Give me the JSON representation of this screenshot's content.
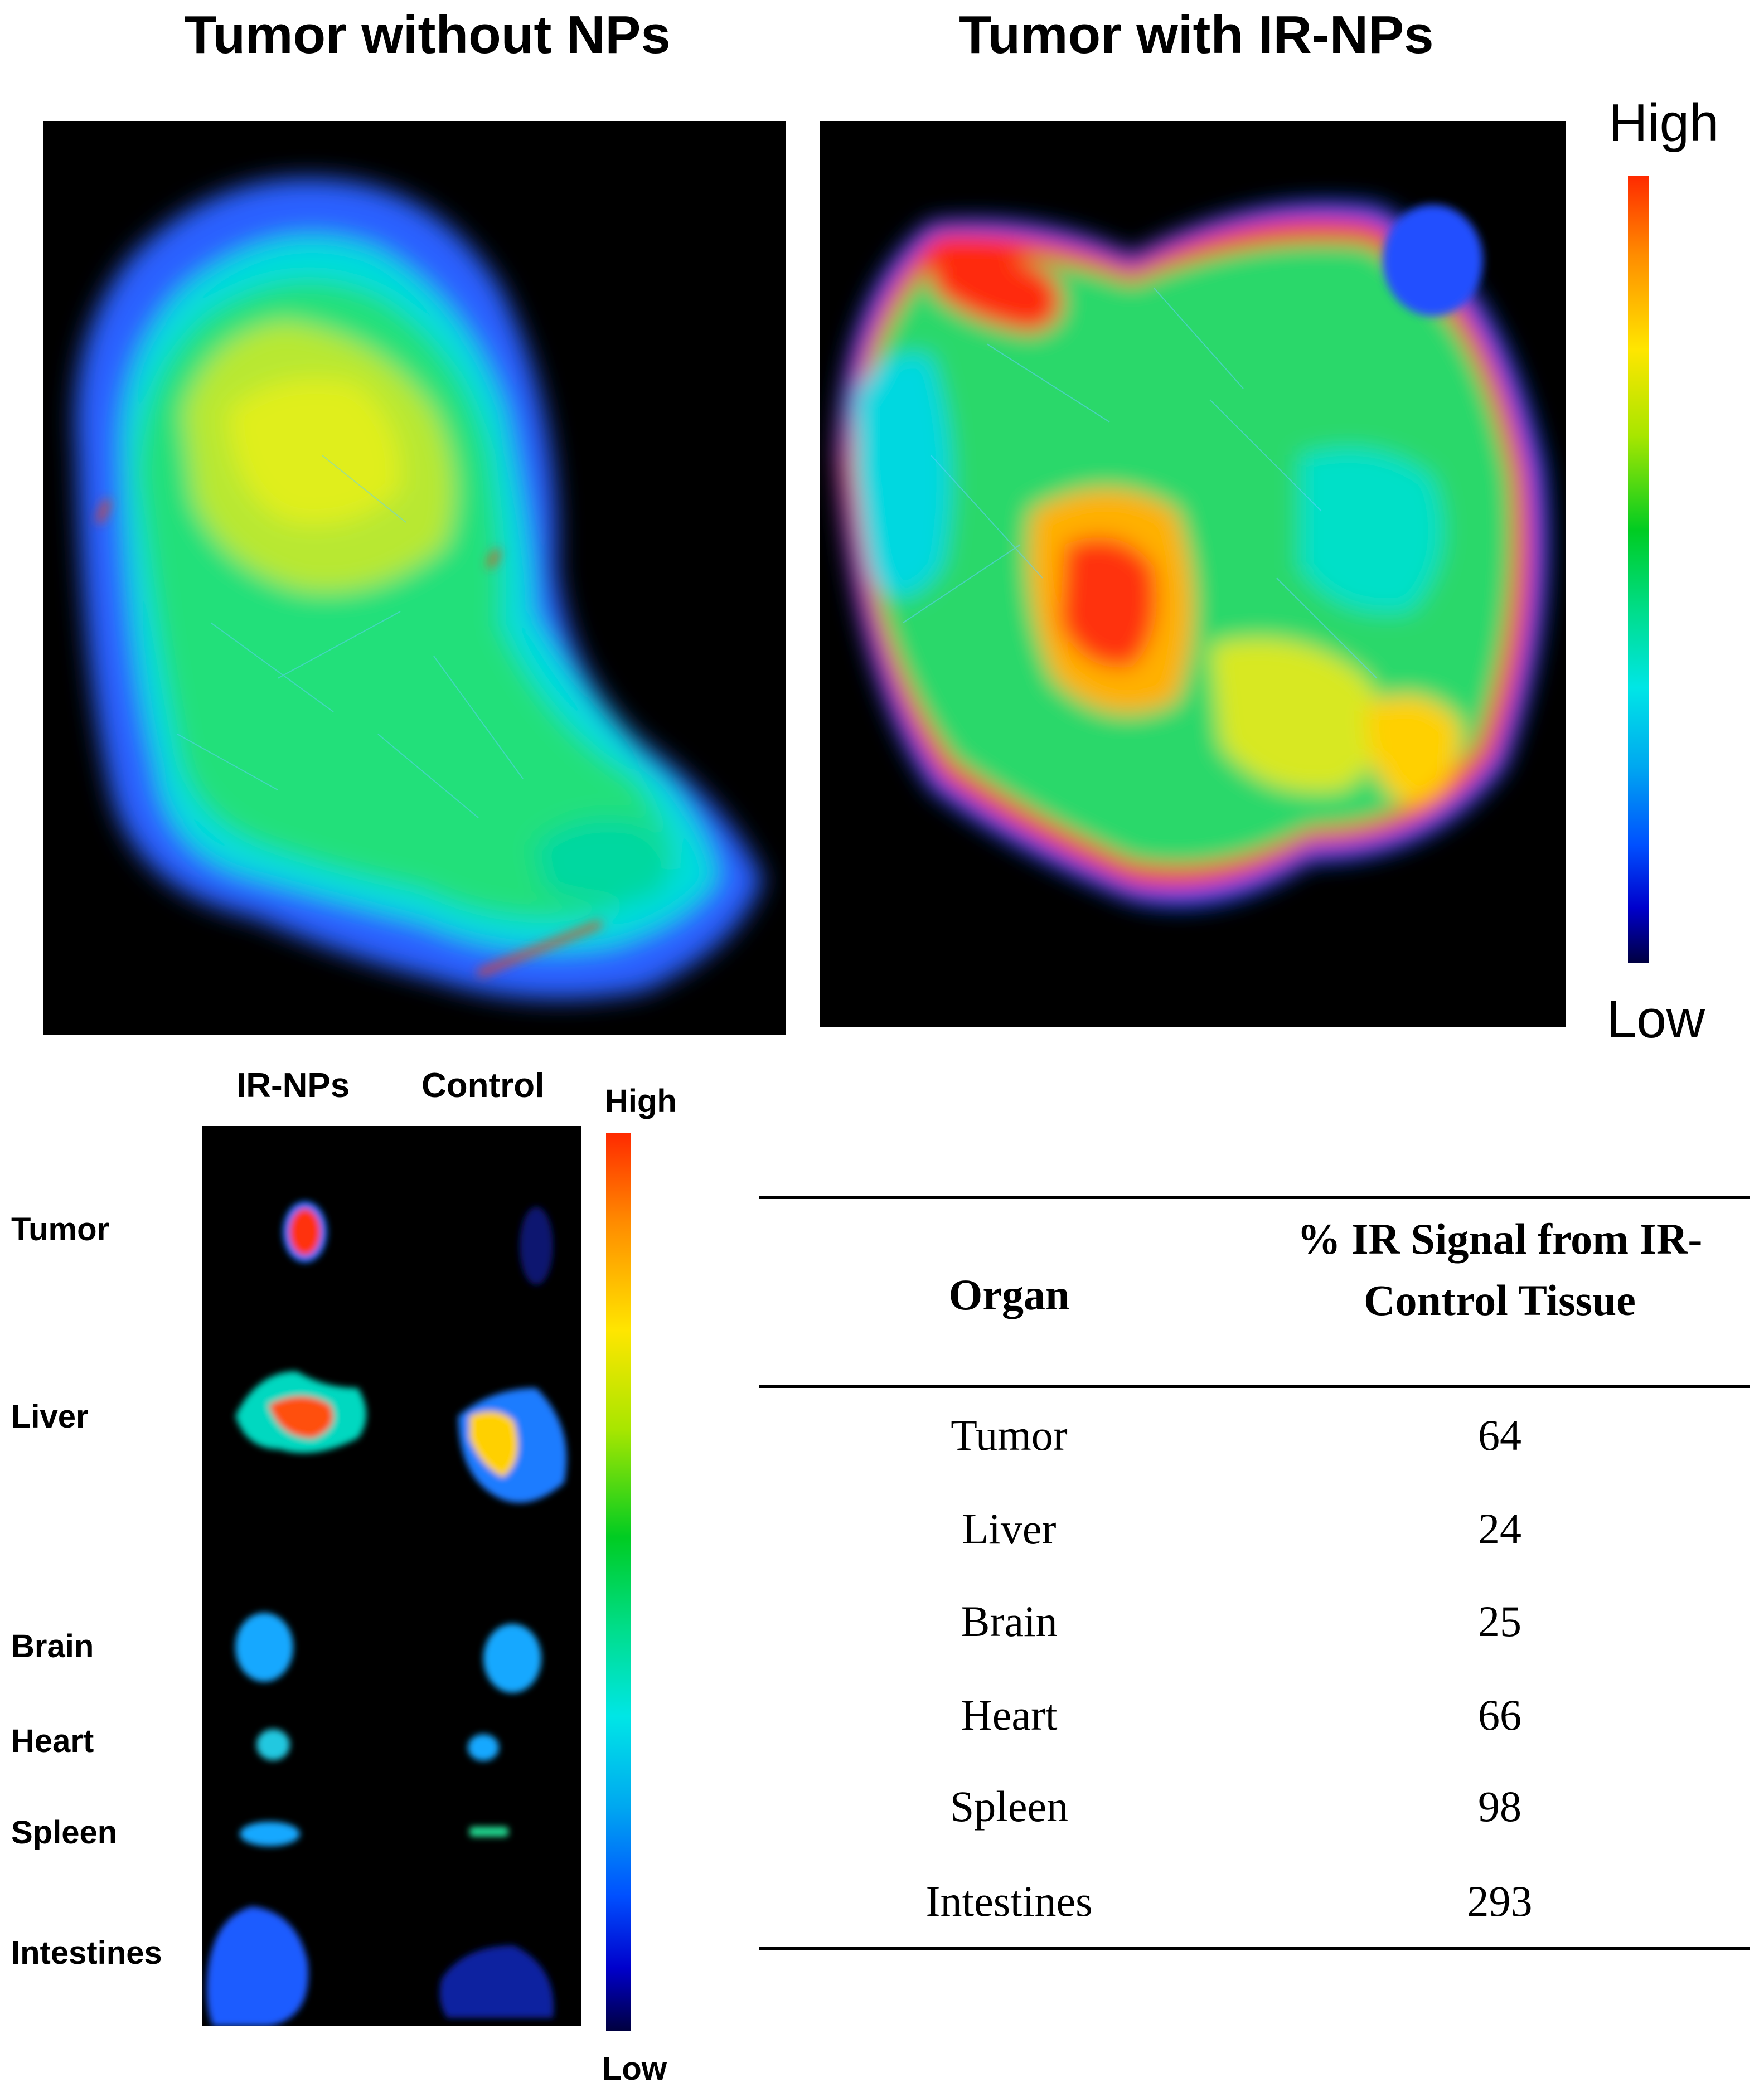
{
  "panels": {
    "left_title": "Tumor without NPs",
    "right_title": "Tumor with IR-NPs"
  },
  "colorbar_top": {
    "high": "High",
    "low": "Low"
  },
  "organ_panel": {
    "col_labels": [
      "IR-NPs",
      "Control"
    ],
    "row_labels": [
      "Tumor",
      "Liver",
      "Brain",
      "Heart",
      "Spleen",
      "Intestines"
    ]
  },
  "colorbar_bottom": {
    "high": "High",
    "low": "Low"
  },
  "table": {
    "headers": [
      "Organ",
      "% IR Signal from IR-Control Tissue"
    ],
    "rows": [
      [
        "Tumor",
        "64"
      ],
      [
        "Liver",
        "24"
      ],
      [
        "Brain",
        "25"
      ],
      [
        "Heart",
        "66"
      ],
      [
        "Spleen",
        "98"
      ],
      [
        "Intestines",
        "293"
      ]
    ]
  }
}
